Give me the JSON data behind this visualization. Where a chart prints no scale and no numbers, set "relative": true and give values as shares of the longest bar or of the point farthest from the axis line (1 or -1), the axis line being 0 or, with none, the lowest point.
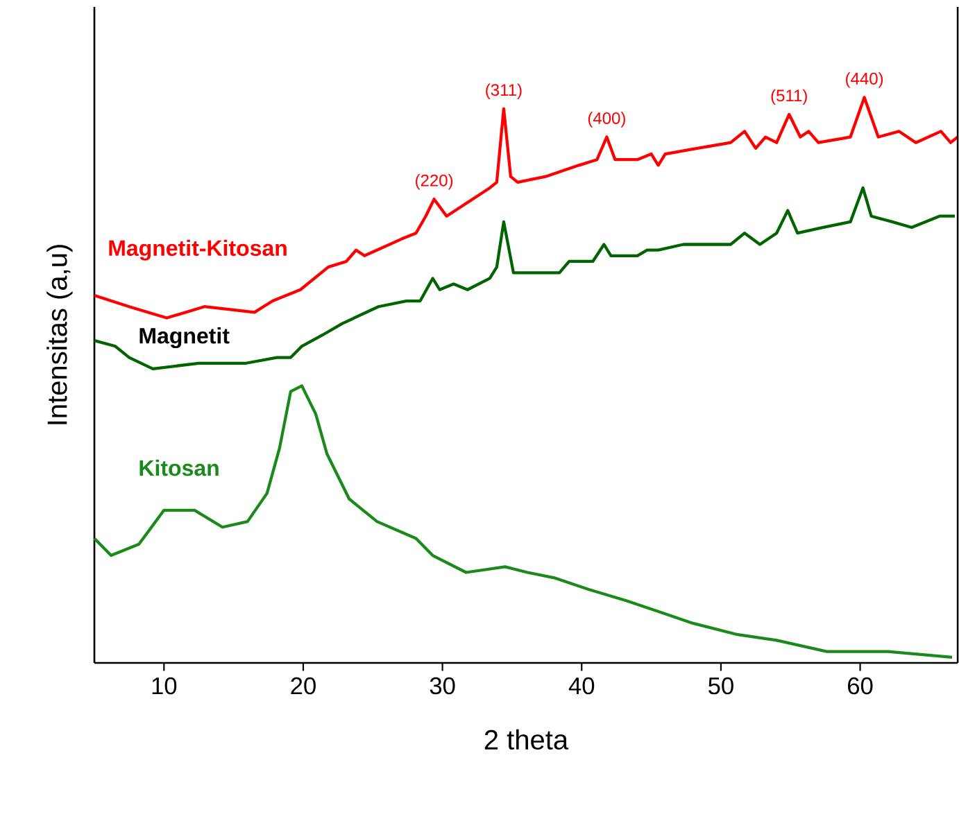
{
  "chart_data": {
    "type": "line",
    "relative": true,
    "xlabel": "2 theta",
    "ylabel": "Intensitas (a,u)",
    "xlim": [
      5,
      67
    ],
    "xticks": [
      10,
      20,
      30,
      40,
      50,
      60
    ],
    "tick_labels": "x",
    "grid": false,
    "marker": "none",
    "line_style": "solid",
    "annotations": [
      {
        "text": "(220)",
        "x": 29.4,
        "y": 0.82
      },
      {
        "text": "(311)",
        "x": 34.4,
        "y": 0.98
      },
      {
        "text": "(400)",
        "x": 41.8,
        "y": 0.93
      },
      {
        "text": "(511)",
        "x": 54.9,
        "y": 0.97
      },
      {
        "text": "(440)",
        "x": 60.3,
        "y": 1.0
      }
    ],
    "series": [
      {
        "name": "Magnetit-Kitosan",
        "color": "#ff0000",
        "x": [
          5.0,
          7.5,
          10.2,
          12.9,
          16.5,
          17.8,
          19.8,
          20.8,
          21.8,
          23.1,
          23.8,
          24.4,
          27.1,
          28.1,
          28.8,
          29.4,
          30.3,
          33.4,
          33.9,
          34.4,
          34.9,
          35.4,
          37.4,
          39.8,
          41.1,
          41.8,
          42.4,
          44.0,
          45.0,
          45.5,
          46.0,
          48.3,
          50.7,
          51.7,
          52.5,
          53.2,
          54.0,
          54.9,
          55.7,
          56.3,
          57.0,
          59.3,
          60.3,
          61.3,
          62.8,
          64.0,
          65.8,
          66.5,
          67.0
        ],
        "values": [
          0.65,
          0.63,
          0.61,
          0.63,
          0.62,
          0.64,
          0.66,
          0.68,
          0.7,
          0.71,
          0.73,
          0.72,
          0.75,
          0.76,
          0.79,
          0.82,
          0.79,
          0.84,
          0.85,
          0.98,
          0.86,
          0.85,
          0.86,
          0.88,
          0.89,
          0.93,
          0.89,
          0.89,
          0.9,
          0.88,
          0.9,
          0.91,
          0.92,
          0.94,
          0.91,
          0.93,
          0.92,
          0.97,
          0.93,
          0.94,
          0.92,
          0.93,
          1.0,
          0.93,
          0.94,
          0.92,
          0.94,
          0.92,
          0.93
        ]
      },
      {
        "name": "Magnetit",
        "color": "#006400",
        "x": [
          5.0,
          6.5,
          7.5,
          9.2,
          12.5,
          15.9,
          18.1,
          19.1,
          19.9,
          21.4,
          22.8,
          25.4,
          27.4,
          28.4,
          29.3,
          29.8,
          30.8,
          31.8,
          33.4,
          33.9,
          34.4,
          35.1,
          35.3,
          36.8,
          38.4,
          39.1,
          40.8,
          41.6,
          42.1,
          44.0,
          44.7,
          45.5,
          47.3,
          48.3,
          50.7,
          51.7,
          52.8,
          54.0,
          54.8,
          55.5,
          57.3,
          59.3,
          60.2,
          60.8,
          62.3,
          63.7,
          65.7,
          66.8
        ],
        "values": [
          0.57,
          0.56,
          0.54,
          0.52,
          0.53,
          0.53,
          0.54,
          0.54,
          0.56,
          0.58,
          0.6,
          0.63,
          0.64,
          0.64,
          0.68,
          0.66,
          0.67,
          0.66,
          0.68,
          0.7,
          0.78,
          0.69,
          0.69,
          0.69,
          0.69,
          0.71,
          0.71,
          0.74,
          0.72,
          0.72,
          0.73,
          0.73,
          0.74,
          0.74,
          0.74,
          0.76,
          0.74,
          0.76,
          0.8,
          0.76,
          0.77,
          0.78,
          0.84,
          0.79,
          0.78,
          0.77,
          0.79,
          0.79
        ]
      },
      {
        "name": "Kitosan",
        "color": "#1a8a1a",
        "x": [
          5.0,
          6.2,
          8.2,
          10.0,
          12.2,
          14.2,
          16.0,
          17.4,
          18.3,
          19.1,
          19.9,
          20.9,
          21.7,
          23.3,
          25.3,
          28.1,
          29.3,
          31.7,
          34.5,
          36.1,
          38.1,
          40.5,
          43.2,
          45.6,
          48.0,
          51.2,
          54.0,
          57.6,
          62.0,
          66.6
        ],
        "values": [
          0.22,
          0.19,
          0.21,
          0.27,
          0.27,
          0.24,
          0.25,
          0.3,
          0.38,
          0.48,
          0.49,
          0.44,
          0.37,
          0.29,
          0.25,
          0.22,
          0.19,
          0.16,
          0.17,
          0.16,
          0.15,
          0.13,
          0.11,
          0.09,
          0.07,
          0.05,
          0.04,
          0.02,
          0.02,
          0.01
        ]
      }
    ]
  }
}
